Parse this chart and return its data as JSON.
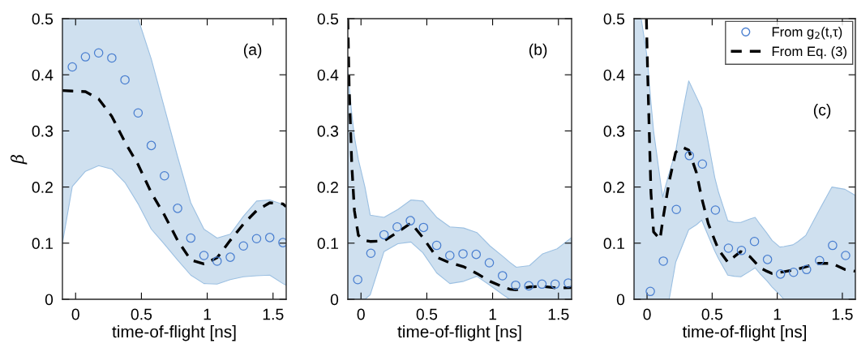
{
  "chart_data": [
    {
      "type": "line",
      "ylabel": "β",
      "xlabel": "time-of-flight [ns]",
      "annotations": [
        "(a)"
      ],
      "xlim": [
        -0.1,
        1.6
      ],
      "ylim": [
        0,
        0.5
      ],
      "xticks": [
        0,
        0.5,
        1,
        1.5
      ],
      "yticks": [
        0,
        0.1,
        0.2,
        0.3,
        0.4,
        0.5
      ],
      "series": [
        {
          "type": "scatter",
          "color": "#4a7fd0",
          "marker": "circle",
          "x": [
            -0.025,
            0.075,
            0.175,
            0.275,
            0.375,
            0.475,
            0.575,
            0.675,
            0.775,
            0.875,
            0.975,
            1.075,
            1.175,
            1.275,
            1.375,
            1.475,
            1.575
          ],
          "values": [
            0.414,
            0.432,
            0.439,
            0.43,
            0.391,
            0.332,
            0.274,
            0.22,
            0.162,
            0.109,
            0.078,
            0.068,
            0.075,
            0.095,
            0.108,
            0.11,
            0.101
          ]
        },
        {
          "color": "#000000",
          "line_style": "dashed",
          "marker": "none",
          "x": [
            -0.1,
            -0.025,
            0.075,
            0.175,
            0.275,
            0.375,
            0.475,
            0.575,
            0.675,
            0.775,
            0.875,
            0.975,
            1.075,
            1.175,
            1.275,
            1.375,
            1.475,
            1.575,
            1.6
          ],
          "values": [
            0.372,
            0.371,
            0.37,
            0.357,
            0.326,
            0.28,
            0.24,
            0.19,
            0.15,
            0.105,
            0.07,
            0.063,
            0.074,
            0.105,
            0.134,
            0.158,
            0.172,
            0.17,
            0.165
          ],
          "lower": [
            0.1,
            0.201,
            0.228,
            0.238,
            0.232,
            0.208,
            0.17,
            0.125,
            0.098,
            0.07,
            0.043,
            0.028,
            0.027,
            0.035,
            0.04,
            0.042,
            0.043,
            0.028,
            0.025
          ],
          "upper": [
            0.5,
            0.5,
            0.5,
            0.5,
            0.5,
            0.5,
            0.5,
            0.428,
            0.341,
            0.254,
            0.172,
            0.125,
            0.109,
            0.116,
            0.148,
            0.175,
            0.177,
            0.169,
            0.165
          ]
        }
      ]
    },
    {
      "type": "line",
      "xlabel": "time-of-flight [ns]",
      "annotations": [
        "(b)"
      ],
      "xlim": [
        -0.1,
        1.6
      ],
      "ylim": [
        0,
        0.5
      ],
      "xticks": [
        0,
        0.5,
        1,
        1.5
      ],
      "yticks": [
        0,
        0.1,
        0.2,
        0.3,
        0.4,
        0.5
      ],
      "series": [
        {
          "type": "scatter",
          "color": "#4a7fd0",
          "marker": "circle",
          "x": [
            -0.025,
            0.075,
            0.175,
            0.275,
            0.375,
            0.475,
            0.575,
            0.675,
            0.775,
            0.875,
            0.975,
            1.075,
            1.175,
            1.275,
            1.375,
            1.475,
            1.575
          ],
          "values": [
            0.035,
            0.082,
            0.115,
            0.129,
            0.14,
            0.128,
            0.096,
            0.078,
            0.081,
            0.08,
            0.065,
            0.042,
            0.025,
            0.024,
            0.027,
            0.027,
            0.029
          ]
        },
        {
          "color": "#000000",
          "line_style": "dashed",
          "marker": "none",
          "x": [
            -0.1,
            -0.09,
            -0.07,
            -0.05,
            -0.02,
            0.03,
            0.07,
            0.175,
            0.28,
            0.38,
            0.47,
            0.575,
            0.675,
            0.78,
            0.88,
            0.98,
            1.08,
            1.13,
            1.18,
            1.28,
            1.38,
            1.49,
            1.6
          ],
          "values": [
            0.5,
            0.38,
            0.24,
            0.158,
            0.114,
            0.105,
            0.103,
            0.104,
            0.12,
            0.136,
            0.11,
            0.075,
            0.065,
            0.058,
            0.046,
            0.032,
            0.022,
            0.018,
            0.017,
            0.022,
            0.023,
            0.02,
            0.021
          ],
          "lower": [
            0,
            0,
            0,
            0,
            0,
            0,
            0.008,
            0.085,
            0.099,
            0.102,
            0.083,
            0.047,
            0.028,
            0.032,
            0.041,
            0.025,
            0.008,
            0,
            0,
            0,
            0,
            0,
            0
          ],
          "upper": [
            0.408,
            0.38,
            0.33,
            0.29,
            0.249,
            0.2,
            0.15,
            0.146,
            0.16,
            0.177,
            0.175,
            0.146,
            0.129,
            0.127,
            0.119,
            0.095,
            0.076,
            0.066,
            0.057,
            0.06,
            0.081,
            0.09,
            0.11
          ]
        }
      ]
    },
    {
      "type": "line",
      "xlabel": "time-of-flight [ns]",
      "annotations": [
        "(c)"
      ],
      "legend": "top right",
      "xlim": [
        -0.1,
        1.6
      ],
      "ylim": [
        0,
        0.5
      ],
      "xticks": [
        0,
        0.5,
        1,
        1.5
      ],
      "yticks": [
        0,
        0.1,
        0.2,
        0.3,
        0.4,
        0.5
      ],
      "series": [
        {
          "type": "scatter",
          "name": "From g$_{2}$(t,τ)",
          "color": "#4a7fd0",
          "marker": "circle",
          "x": [
            0.025,
            0.125,
            0.225,
            0.325,
            0.425,
            0.525,
            0.625,
            0.725,
            0.825,
            0.925,
            1.025,
            1.125,
            1.225,
            1.325,
            1.425,
            1.525
          ],
          "values": [
            0.014,
            0.068,
            0.16,
            0.256,
            0.241,
            0.159,
            0.091,
            0.087,
            0.103,
            0.071,
            0.045,
            0.048,
            0.053,
            0.069,
            0.096,
            0.078
          ]
        },
        {
          "name": "From Eq. (3)",
          "color": "#000000",
          "line_style": "dashed",
          "marker": "none",
          "x": [
            -0.1,
            -0.045,
            -0.005,
            0.005,
            0.03,
            0.05,
            0.1,
            0.12,
            0.14,
            0.17,
            0.22,
            0.27,
            0.32,
            0.38,
            0.42,
            0.47,
            0.52,
            0.55,
            0.62,
            0.67,
            0.72,
            0.79,
            0.83,
            0.87,
            0.92,
            0.96,
            1.02,
            1.05,
            1.12,
            1.16,
            1.22,
            1.32,
            1.42,
            1.52,
            1.6
          ],
          "values": [
            null,
            null,
            0.5,
            0.4,
            0.19,
            0.12,
            0.107,
            0.14,
            0.168,
            0.21,
            0.262,
            0.271,
            0.266,
            0.225,
            0.18,
            0.135,
            0.105,
            0.088,
            0.066,
            0.076,
            0.085,
            0.076,
            0.066,
            0.056,
            0.05,
            0.046,
            0.048,
            0.049,
            0.052,
            0.054,
            0.058,
            0.064,
            0.064,
            0.053,
            0.05
          ],
          "lower": [
            0,
            0,
            0,
            0,
            0,
            0,
            0,
            0,
            0,
            0,
            0.066,
            0.095,
            0.124,
            0.133,
            0.141,
            0.113,
            0.086,
            0.072,
            0.043,
            0.041,
            0.04,
            0.05,
            0.056,
            0.045,
            0.033,
            0.022,
            0.008,
            0,
            0,
            0,
            0,
            0,
            0,
            0,
            0
          ],
          "upper": [
            0.5,
            0.5,
            0.44,
            0.42,
            0.35,
            0.3,
            0.215,
            0.182,
            0.2,
            0.225,
            0.264,
            0.33,
            0.389,
            0.36,
            0.34,
            0.28,
            0.217,
            0.19,
            0.14,
            0.137,
            0.137,
            0.143,
            0.146,
            0.133,
            0.118,
            0.105,
            0.093,
            0.094,
            0.097,
            0.103,
            0.114,
            0.158,
            0.2,
            0.196,
            0.185
          ]
        }
      ]
    }
  ]
}
